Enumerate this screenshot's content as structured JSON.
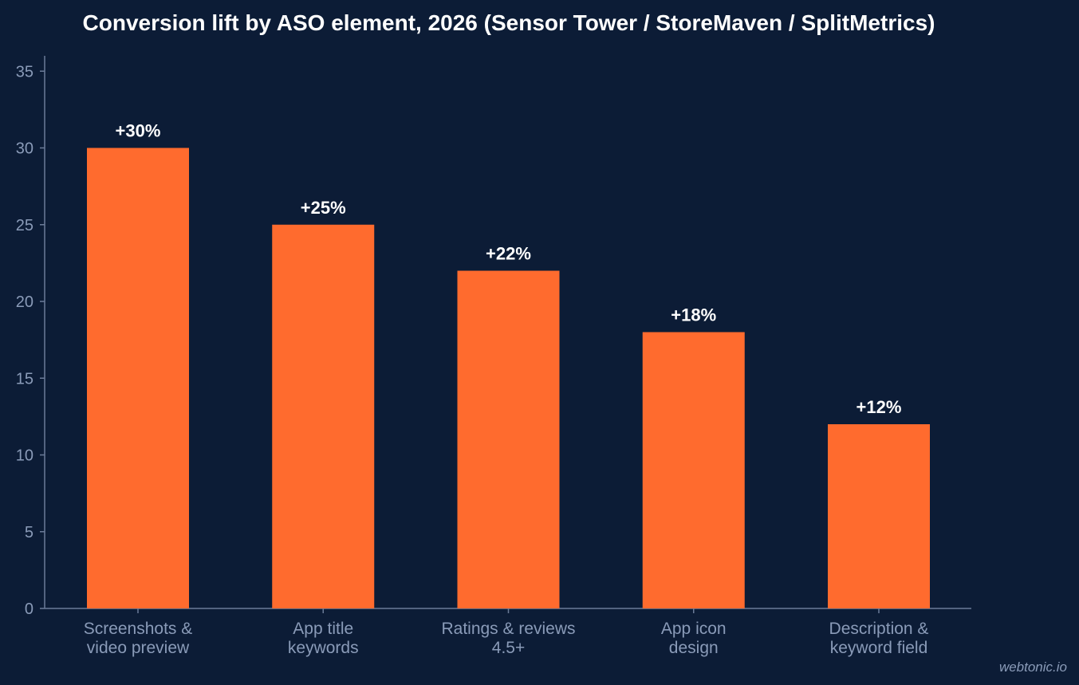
{
  "chart_data": {
    "type": "bar",
    "title": "Conversion lift by ASO element, 2026 (Sensor Tower / StoreMaven / SplitMetrics)",
    "categories": [
      [
        "Screenshots &",
        "video preview"
      ],
      [
        "App title",
        "keywords"
      ],
      [
        "Ratings & reviews",
        "4.5+"
      ],
      [
        "App icon",
        "design"
      ],
      [
        "Description &",
        "keyword field"
      ]
    ],
    "values": [
      30,
      25,
      22,
      18,
      12
    ],
    "data_labels": [
      "+30%",
      "+25%",
      "+22%",
      "+18%",
      "+12%"
    ],
    "xlabel": "",
    "ylabel": "",
    "ylim": [
      0,
      36
    ],
    "yticks": [
      0,
      5,
      10,
      15,
      20,
      25,
      30,
      35
    ],
    "grid": false,
    "legend": "none",
    "colors": {
      "background": "#0c1c36",
      "bar": "#ff6b2e",
      "axis": "#6b7b98",
      "tick_text": "#8a9bb8",
      "title_text": "#ffffff",
      "data_label_text": "#ffffff"
    }
  },
  "watermark": "webtonic.io"
}
